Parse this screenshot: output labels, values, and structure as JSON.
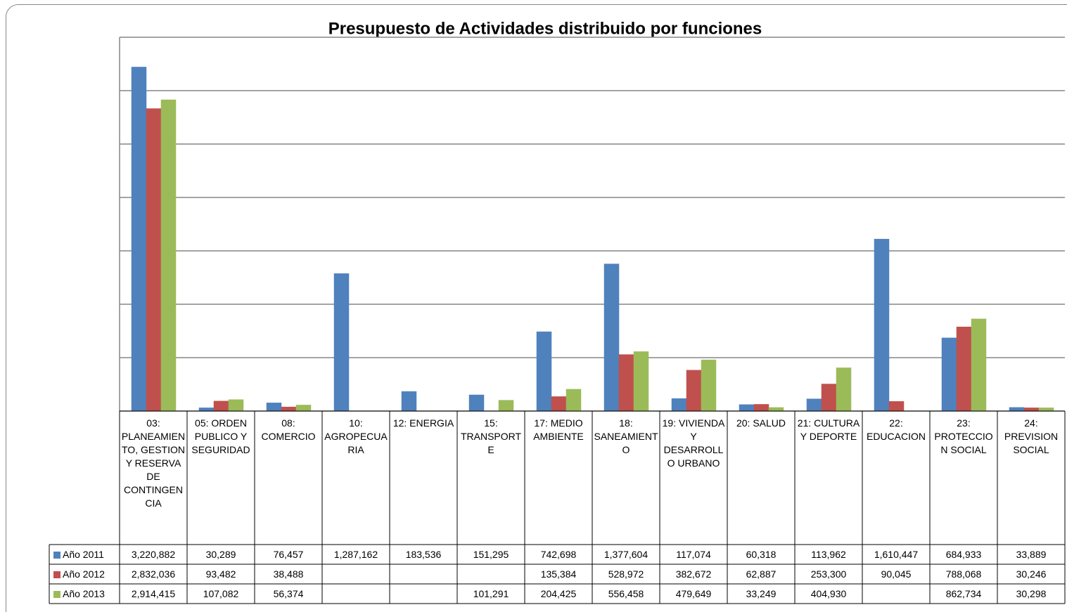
{
  "chart_data": {
    "type": "bar",
    "title": "Presupuesto de Actividades distribuido por funciones",
    "categories": [
      "03: PLANEAMIENTO, GESTION Y RESERVA DE CONTINGENCIA",
      "05: ORDEN PUBLICO Y SEGURIDAD",
      "08: COMERCIO",
      "10: AGROPECUARIA",
      "12: ENERGIA",
      "15: TRANSPORTE",
      "17: MEDIO AMBIENTE",
      "18: SANEAMIENTO",
      "19: VIVIENDA Y DESARROLLO URBANO",
      "20: SALUD",
      "21: CULTURA Y DEPORTE",
      "22: EDUCACION",
      "23: PROTECCION SOCIAL",
      "24: PREVISION SOCIAL"
    ],
    "series": [
      {
        "name": "Año 2011",
        "color": "#4f81bd",
        "values": [
          3220882,
          30289,
          76457,
          1287162,
          183536,
          151295,
          742698,
          1377604,
          117074,
          60318,
          113962,
          1610447,
          684933,
          33889
        ],
        "value_labels": [
          "3,220,882",
          "30,289",
          "76,457",
          "1,287,162",
          "183,536",
          "151,295",
          "742,698",
          "1,377,604",
          "117,074",
          "60,318",
          "113,962",
          "1,610,447",
          "684,933",
          "33,889"
        ]
      },
      {
        "name": "Año 2012",
        "color": "#c0504d",
        "values": [
          2832036,
          93482,
          38488,
          null,
          null,
          null,
          135384,
          528972,
          382672,
          62887,
          253300,
          90045,
          788068,
          30246
        ],
        "value_labels": [
          "2,832,036",
          "93,482",
          "38,488",
          null,
          null,
          null,
          "135,384",
          "528,972",
          "382,672",
          "62,887",
          "253,300",
          "90,045",
          "788,068",
          "30,246"
        ]
      },
      {
        "name": "Año 2013",
        "color": "#9bbb59",
        "values": [
          2914415,
          107082,
          56374,
          null,
          null,
          101291,
          204425,
          556458,
          479649,
          33249,
          404930,
          null,
          862734,
          30298
        ],
        "value_labels": [
          "2,914,415",
          "107,082",
          "56,374",
          null,
          null,
          "101,291",
          "204,425",
          "556,458",
          "479,649",
          "33,249",
          "404,930",
          null,
          "862,734",
          "30,298"
        ]
      }
    ],
    "ylim": [
      0,
      3500000
    ],
    "yticks": [
      0,
      500000,
      1000000,
      1500000,
      2000000,
      2500000,
      3000000,
      3500000
    ],
    "grid": true
  }
}
